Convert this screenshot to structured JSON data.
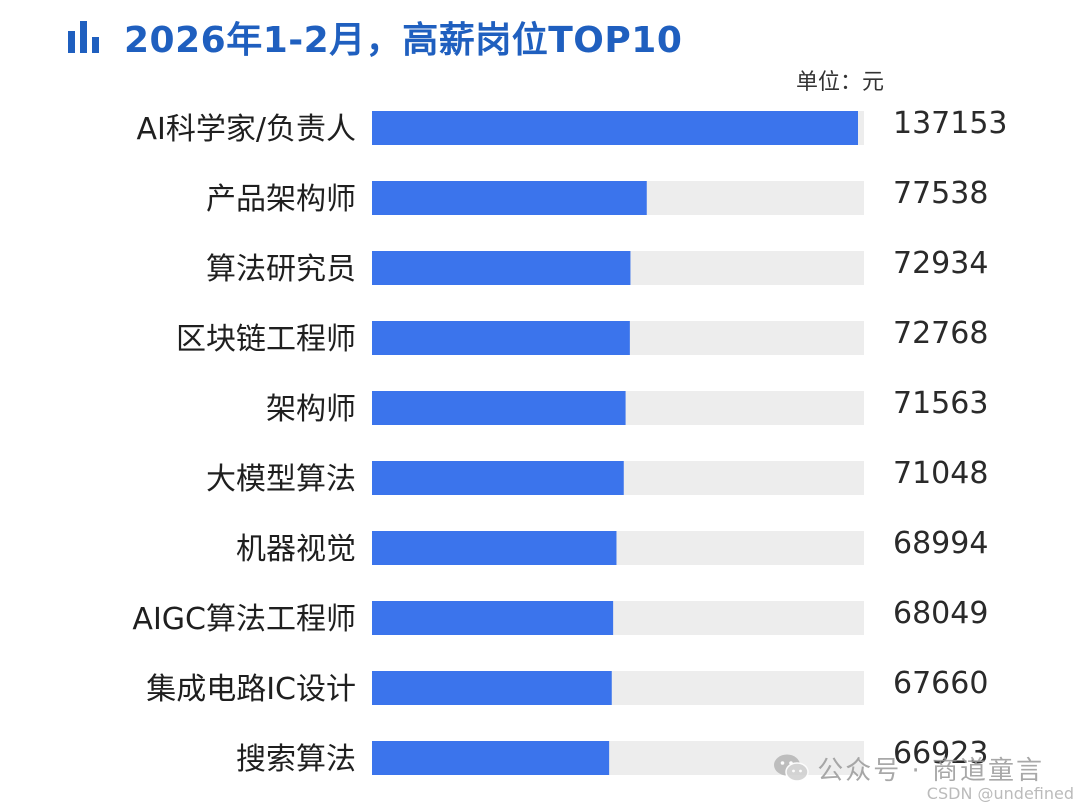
{
  "header": {
    "title": "2026年1-2月，高薪岗位TOP10",
    "title_icon": "bar-chart-icon",
    "unit": "单位：元"
  },
  "chart_data": {
    "type": "bar",
    "orientation": "horizontal",
    "title": "2026年1-2月，高薪岗位TOP10",
    "unit": "单位：元",
    "categories": [
      "AI科学家/负责人",
      "产品架构师",
      "算法研究员",
      "区块链工程师",
      "架构师",
      "大模型算法",
      "机器视觉",
      "AIGC算法工程师",
      "集成电路IC设计",
      "搜索算法"
    ],
    "values": [
      137153,
      77538,
      72934,
      72768,
      71563,
      71048,
      68994,
      68049,
      67660,
      66923
    ],
    "xlim": [
      0,
      137153
    ],
    "grid": false,
    "legend": "none",
    "colors": {
      "bar": "#3b74ec",
      "track": "#ededed",
      "label": "#1f1f1f",
      "value": "#2a2a2a"
    }
  },
  "watermark": {
    "wechat_icon": "wechat-icon",
    "wechat_text": "公众号 · 商道童言",
    "csdn_text": "CSDN @undefined"
  }
}
